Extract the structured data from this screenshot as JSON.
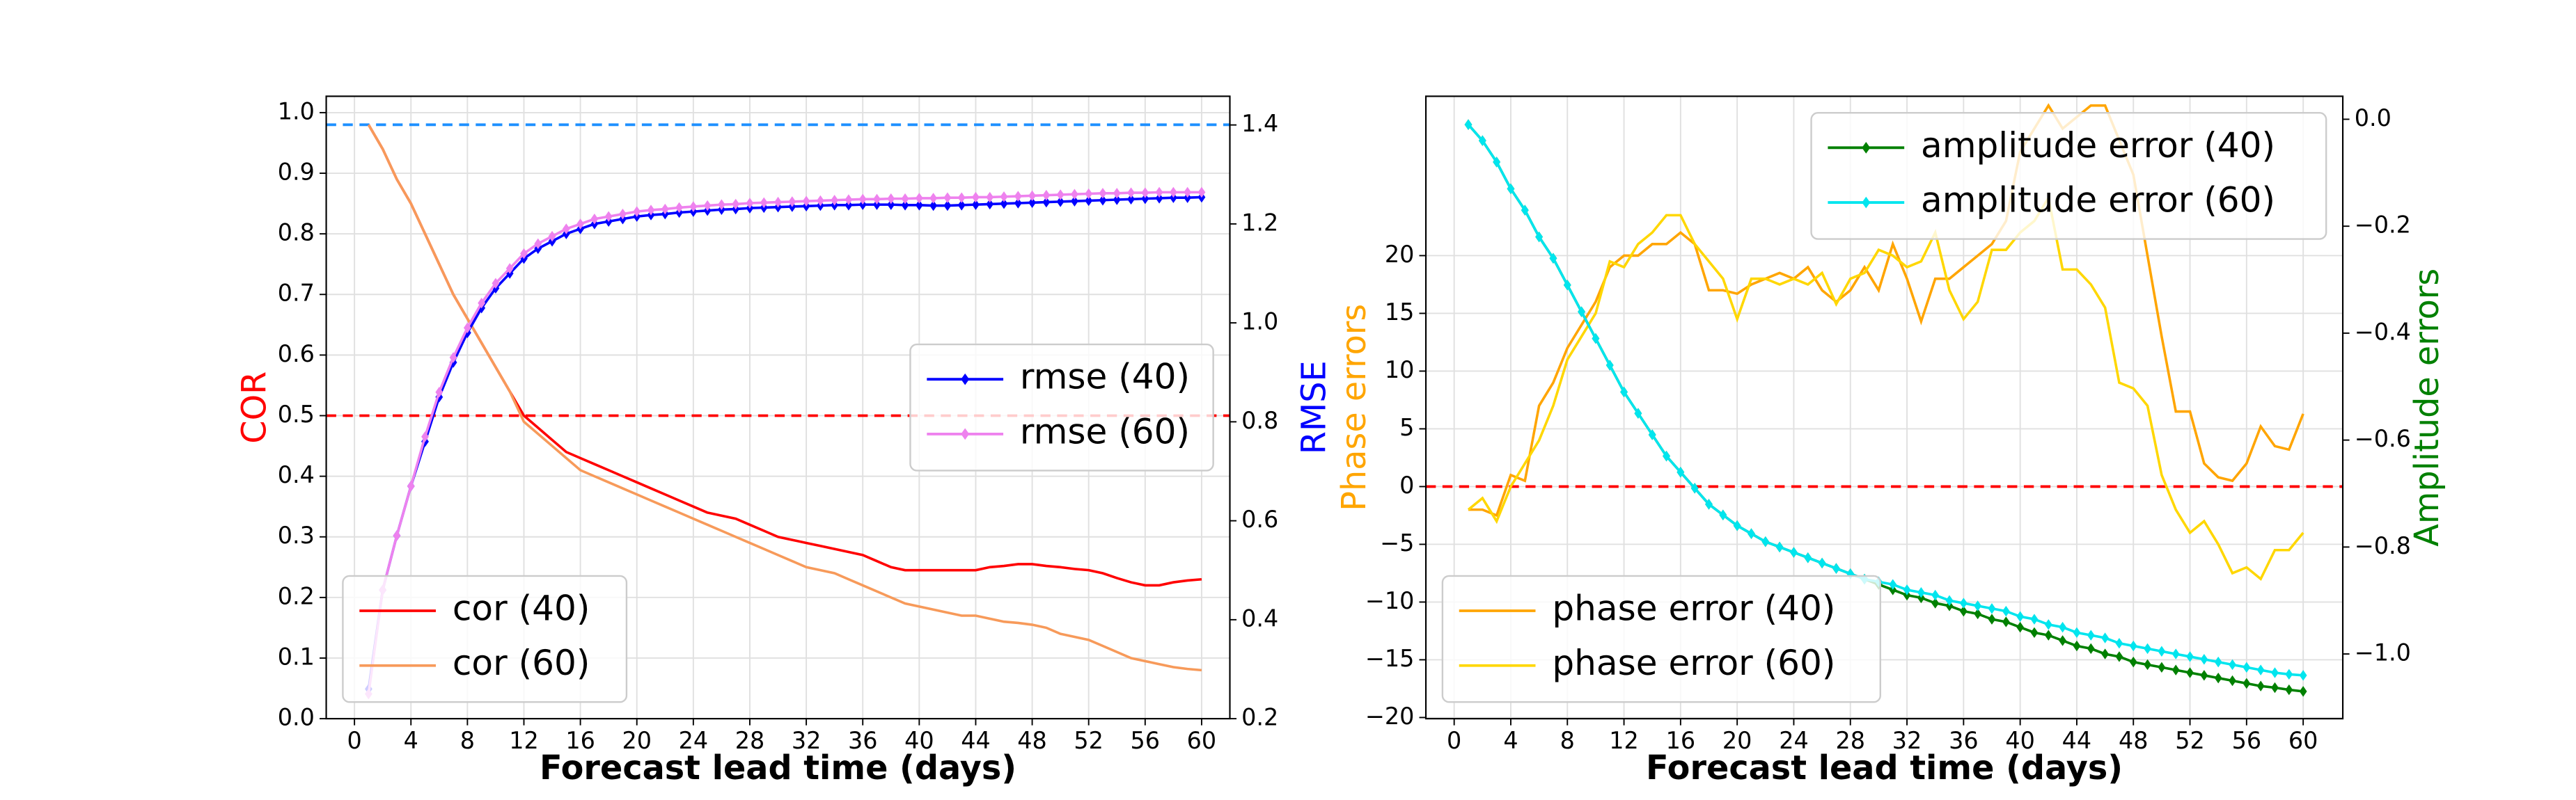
{
  "chart_data": [
    {
      "type": "line",
      "xlabel": "Forecast lead time (days)",
      "ylabel": "COR",
      "y2label": "RMSE",
      "ylabel_color": "#ff0000",
      "y2label_color": "#0000ff",
      "xlim": [
        -2,
        62
      ],
      "xticks": [
        0,
        4,
        8,
        12,
        16,
        20,
        24,
        28,
        32,
        36,
        40,
        44,
        48,
        52,
        56,
        60
      ],
      "ylim": [
        0,
        1.027
      ],
      "yticks": [
        {
          "value": 0,
          "label": "0.0"
        },
        0.1,
        0.2,
        0.3,
        0.4,
        0.5,
        0.6,
        0.7,
        0.8,
        0.9,
        {
          "value": 1,
          "label": "1.0"
        }
      ],
      "y2lim": [
        0.2,
        1.458
      ],
      "y2ticks": [
        0.2,
        0.4,
        0.6,
        0.8,
        {
          "value": 1,
          "label": "1.0"
        },
        1.2,
        1.4
      ],
      "grid": true,
      "legend": {
        "y": "lower left",
        "y2": "center right"
      },
      "hlines": [
        {
          "value": 0.98,
          "color": "#1e90ff"
        },
        {
          "value": 0.5,
          "color": "#ff0000"
        }
      ],
      "x": [
        1,
        2,
        3,
        4,
        5,
        6,
        7,
        8,
        9,
        10,
        11,
        12,
        13,
        14,
        15,
        16,
        17,
        18,
        19,
        20,
        21,
        22,
        23,
        24,
        25,
        26,
        27,
        28,
        29,
        30,
        31,
        32,
        33,
        34,
        35,
        36,
        37,
        38,
        39,
        40,
        41,
        42,
        43,
        44,
        45,
        46,
        47,
        48,
        49,
        50,
        51,
        52,
        53,
        54,
        55,
        56,
        57,
        58,
        59,
        60
      ],
      "series": [
        {
          "name": "cor (40)",
          "color": "#ff0000",
          "axis": "y",
          "values": [
            0.98,
            0.94,
            0.89,
            0.85,
            0.8,
            0.75,
            0.7,
            0.66,
            0.62,
            0.58,
            0.54,
            0.5,
            0.48,
            0.46,
            0.44,
            0.43,
            0.42,
            0.41,
            0.4,
            0.39,
            0.38,
            0.37,
            0.36,
            0.35,
            0.34,
            0.335,
            0.33,
            0.32,
            0.31,
            0.3,
            0.295,
            0.29,
            0.285,
            0.28,
            0.275,
            0.27,
            0.26,
            0.25,
            0.245,
            0.245,
            0.245,
            0.245,
            0.245,
            0.245,
            0.25,
            0.252,
            0.255,
            0.255,
            0.252,
            0.25,
            0.247,
            0.245,
            0.24,
            0.232,
            0.225,
            0.22,
            0.22,
            0.225,
            0.228,
            0.23
          ]
        },
        {
          "name": "cor (60)",
          "color": "#f79a5a",
          "axis": "y",
          "values": [
            0.98,
            0.94,
            0.89,
            0.85,
            0.8,
            0.75,
            0.7,
            0.66,
            0.62,
            0.58,
            0.54,
            0.49,
            0.47,
            0.45,
            0.43,
            0.41,
            0.4,
            0.39,
            0.38,
            0.37,
            0.36,
            0.35,
            0.34,
            0.33,
            0.32,
            0.31,
            0.3,
            0.29,
            0.28,
            0.27,
            0.26,
            0.25,
            0.245,
            0.24,
            0.23,
            0.22,
            0.21,
            0.2,
            0.19,
            0.185,
            0.18,
            0.175,
            0.17,
            0.17,
            0.165,
            0.16,
            0.158,
            0.155,
            0.15,
            0.14,
            0.135,
            0.13,
            0.12,
            0.11,
            0.1,
            0.095,
            0.09,
            0.085,
            0.082,
            0.08
          ]
        },
        {
          "name": "rmse (40)",
          "color": "#0000ff",
          "axis": "y2",
          "marker": "diamond",
          "values": [
            0.26,
            0.46,
            0.57,
            0.67,
            0.76,
            0.85,
            0.92,
            0.98,
            1.03,
            1.07,
            1.1,
            1.13,
            1.15,
            1.165,
            1.18,
            1.19,
            1.2,
            1.205,
            1.21,
            1.215,
            1.218,
            1.22,
            1.223,
            1.225,
            1.227,
            1.229,
            1.23,
            1.232,
            1.233,
            1.234,
            1.235,
            1.236,
            1.237,
            1.238,
            1.238,
            1.239,
            1.239,
            1.239,
            1.238,
            1.238,
            1.237,
            1.237,
            1.238,
            1.239,
            1.24,
            1.241,
            1.242,
            1.243,
            1.244,
            1.245,
            1.246,
            1.247,
            1.248,
            1.249,
            1.25,
            1.251,
            1.252,
            1.253,
            1.253,
            1.254
          ]
        },
        {
          "name": "rmse (60)",
          "color": "#ee82ee",
          "axis": "y2",
          "marker": "diamond",
          "values": [
            0.25,
            0.46,
            0.57,
            0.67,
            0.77,
            0.86,
            0.93,
            0.99,
            1.04,
            1.08,
            1.11,
            1.14,
            1.16,
            1.175,
            1.19,
            1.2,
            1.21,
            1.215,
            1.22,
            1.225,
            1.228,
            1.23,
            1.233,
            1.235,
            1.237,
            1.239,
            1.24,
            1.242,
            1.243,
            1.244,
            1.245,
            1.246,
            1.247,
            1.248,
            1.249,
            1.25,
            1.25,
            1.251,
            1.251,
            1.252,
            1.252,
            1.253,
            1.253,
            1.254,
            1.254,
            1.255,
            1.256,
            1.257,
            1.258,
            1.259,
            1.26,
            1.261,
            1.262,
            1.262,
            1.263,
            1.263,
            1.264,
            1.264,
            1.264,
            1.264
          ]
        }
      ]
    },
    {
      "type": "line",
      "xlabel": "Forecast lead time (days)",
      "ylabel": "Phase errors",
      "y2label": "Amplitude errors",
      "ylabel_color": "#ffa500",
      "y2label_color": "#008000",
      "xlim": [
        -2,
        62.8
      ],
      "xticks": [
        0,
        4,
        8,
        12,
        16,
        20,
        24,
        28,
        32,
        36,
        40,
        44,
        48,
        52,
        56,
        60
      ],
      "ylim": [
        -20.1,
        33.8
      ],
      "yticks": [
        {
          "value": -20,
          "label": "−20"
        },
        {
          "value": -15,
          "label": "−15"
        },
        {
          "value": -10,
          "label": "−10"
        },
        {
          "value": -5,
          "label": "−5"
        },
        0,
        5,
        10,
        15,
        20
      ],
      "y2lim": [
        -1.121,
        0.043
      ],
      "y2ticks": [
        {
          "value": -1,
          "label": "−1.0"
        },
        {
          "value": -0.8,
          "label": "−0.8"
        },
        {
          "value": -0.6,
          "label": "−0.6"
        },
        {
          "value": -0.4,
          "label": "−0.4"
        },
        {
          "value": -0.2,
          "label": "−0.2"
        },
        {
          "value": 0,
          "label": "0.0"
        }
      ],
      "grid": true,
      "legend": {
        "y": "lower left",
        "y2": "upper right"
      },
      "hlines": [
        {
          "value": 0,
          "color": "#ff0000"
        }
      ],
      "x": [
        1,
        2,
        3,
        4,
        5,
        6,
        7,
        8,
        9,
        10,
        11,
        12,
        13,
        14,
        15,
        16,
        17,
        18,
        19,
        20,
        21,
        22,
        23,
        24,
        25,
        26,
        27,
        28,
        29,
        30,
        31,
        32,
        33,
        34,
        35,
        36,
        37,
        38,
        39,
        40,
        41,
        42,
        43,
        44,
        45,
        46,
        47,
        48,
        49,
        50,
        51,
        52,
        53,
        54,
        55,
        56,
        57,
        58,
        59,
        60
      ],
      "series": [
        {
          "name": "phase error (40)",
          "color": "#ffa500",
          "axis": "y",
          "values": [
            -2,
            -2,
            -2.5,
            1,
            0.5,
            7,
            9,
            12,
            14,
            16,
            19,
            20,
            20,
            21,
            21,
            22,
            21,
            17,
            17,
            16.7,
            17.5,
            18,
            18.5,
            18,
            19,
            17,
            16,
            17,
            19,
            17,
            21,
            18,
            14.3,
            18,
            18,
            19,
            20,
            21,
            23,
            29,
            31,
            33,
            31,
            32,
            33,
            33,
            30,
            27,
            20,
            13,
            6.5,
            6.5,
            2,
            0.8,
            0.5,
            2,
            5.2,
            3.5,
            3.2,
            6.3
          ]
        },
        {
          "name": "phase error (60)",
          "color": "#ffd700",
          "axis": "y",
          "values": [
            -2,
            -1,
            -3,
            0,
            2,
            4,
            7,
            11,
            13,
            15,
            19.5,
            19,
            21,
            22,
            23.5,
            23.5,
            21,
            19.5,
            18,
            14.5,
            18,
            18,
            17.5,
            18,
            17.5,
            18.5,
            15.8,
            18,
            18.5,
            20.5,
            20,
            19,
            19.5,
            22,
            17,
            14.5,
            16,
            20.5,
            20.5,
            22,
            23,
            25,
            18.8,
            18.8,
            17.5,
            15.5,
            9,
            8.5,
            7,
            1,
            -2,
            -4,
            -3,
            -5,
            -7.5,
            -7,
            -8,
            -5.5,
            -5.5,
            -4
          ]
        },
        {
          "name": "amplitude error (40)",
          "color": "#008000",
          "axis": "y2",
          "marker": "diamond",
          "values": [
            -0.01,
            -0.04,
            -0.08,
            -0.13,
            -0.17,
            -0.22,
            -0.26,
            -0.31,
            -0.36,
            -0.41,
            -0.46,
            -0.51,
            -0.55,
            -0.59,
            -0.63,
            -0.66,
            -0.69,
            -0.72,
            -0.74,
            -0.76,
            -0.775,
            -0.79,
            -0.8,
            -0.81,
            -0.82,
            -0.83,
            -0.84,
            -0.85,
            -0.86,
            -0.87,
            -0.88,
            -0.89,
            -0.895,
            -0.905,
            -0.91,
            -0.92,
            -0.925,
            -0.935,
            -0.94,
            -0.95,
            -0.96,
            -0.965,
            -0.975,
            -0.985,
            -0.99,
            -1.0,
            -1.005,
            -1.015,
            -1.02,
            -1.025,
            -1.03,
            -1.035,
            -1.04,
            -1.045,
            -1.05,
            -1.055,
            -1.06,
            -1.063,
            -1.067,
            -1.07
          ]
        },
        {
          "name": "amplitude error (60)",
          "color": "#00e5ee",
          "axis": "y2",
          "marker": "diamond",
          "values": [
            -0.01,
            -0.04,
            -0.08,
            -0.13,
            -0.17,
            -0.22,
            -0.26,
            -0.31,
            -0.36,
            -0.41,
            -0.46,
            -0.51,
            -0.55,
            -0.59,
            -0.63,
            -0.66,
            -0.69,
            -0.72,
            -0.74,
            -0.76,
            -0.775,
            -0.79,
            -0.8,
            -0.81,
            -0.82,
            -0.83,
            -0.84,
            -0.85,
            -0.86,
            -0.865,
            -0.87,
            -0.88,
            -0.885,
            -0.89,
            -0.9,
            -0.905,
            -0.91,
            -0.915,
            -0.92,
            -0.93,
            -0.935,
            -0.945,
            -0.95,
            -0.96,
            -0.965,
            -0.97,
            -0.98,
            -0.985,
            -0.99,
            -0.995,
            -1.0,
            -1.005,
            -1.01,
            -1.015,
            -1.02,
            -1.025,
            -1.03,
            -1.035,
            -1.038,
            -1.04
          ]
        }
      ]
    }
  ]
}
